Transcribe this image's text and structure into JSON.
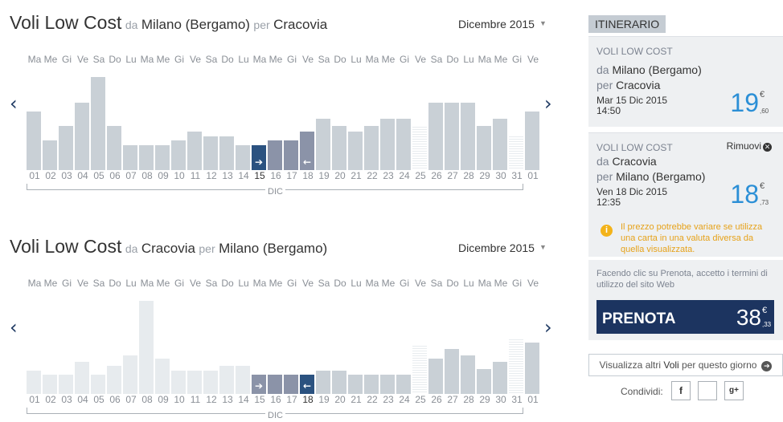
{
  "calendars": [
    {
      "title": {
        "brand": "Voli Low Cost",
        "from_prefix": "da",
        "from": "Milano (Bergamo)",
        "to_prefix": "per",
        "to": "Cracovia"
      },
      "month_select": "Dicembre 2015",
      "month_label": "DIC",
      "nav": {
        "prev": "‹",
        "next": "›"
      }
    },
    {
      "title": {
        "brand": "Voli Low Cost",
        "from_prefix": "da",
        "from": "Cracovia",
        "to_prefix": "per",
        "to": "Milano (Bergamo)"
      },
      "month_select": "Dicembre 2015",
      "month_label": "DIC",
      "nav": {
        "prev": "‹",
        "next": "›"
      }
    }
  ],
  "weekdays": [
    "Ma",
    "Me",
    "Gi",
    "Ve",
    "Sa",
    "Do",
    "Lu",
    "Ma",
    "Me",
    "Gi",
    "Ve",
    "Sa",
    "Do",
    "Lu",
    "Ma",
    "Me",
    "Gi",
    "Ve",
    "Sa",
    "Do",
    "Lu",
    "Ma",
    "Me",
    "Gi",
    "Ve",
    "Sa",
    "Do",
    "Lu",
    "Ma",
    "Me",
    "Gi",
    "Ve"
  ],
  "day_numbers": [
    "01",
    "02",
    "03",
    "04",
    "05",
    "06",
    "07",
    "08",
    "09",
    "10",
    "11",
    "12",
    "13",
    "14",
    "15",
    "16",
    "17",
    "18",
    "19",
    "20",
    "21",
    "22",
    "23",
    "24",
    "25",
    "26",
    "27",
    "28",
    "29",
    "30",
    "31",
    "01"
  ],
  "chart_data": [
    {
      "type": "bar",
      "categories": [
        "01",
        "02",
        "03",
        "04",
        "05",
        "06",
        "07",
        "08",
        "09",
        "10",
        "11",
        "12",
        "13",
        "14",
        "15",
        "16",
        "17",
        "18",
        "19",
        "20",
        "21",
        "22",
        "23",
        "24",
        "25",
        "26",
        "27",
        "28",
        "29",
        "30",
        "31",
        "01"
      ],
      "values": [
        0.61,
        0.31,
        0.46,
        0.7,
        0.97,
        0.46,
        0.26,
        0.26,
        0.26,
        0.31,
        0.4,
        0.35,
        0.35,
        0.26,
        0.26,
        0.31,
        0.31,
        0.4,
        0.53,
        0.46,
        0.4,
        0.46,
        0.53,
        0.53,
        0.45,
        0.7,
        0.7,
        0.7,
        0.46,
        0.53,
        0.35,
        0.61
      ],
      "states": [
        "normal",
        "normal",
        "normal",
        "normal",
        "normal",
        "normal",
        "normal",
        "normal",
        "normal",
        "normal",
        "normal",
        "normal",
        "normal",
        "normal",
        "selected",
        "range",
        "range",
        "range",
        "normal",
        "normal",
        "normal",
        "normal",
        "normal",
        "normal",
        "empty",
        "normal",
        "normal",
        "normal",
        "normal",
        "normal",
        "empty",
        "normal"
      ],
      "ylim": [
        0,
        1
      ]
    },
    {
      "type": "bar",
      "categories": [
        "01",
        "02",
        "03",
        "04",
        "05",
        "06",
        "07",
        "08",
        "09",
        "10",
        "11",
        "12",
        "13",
        "14",
        "15",
        "16",
        "17",
        "18",
        "19",
        "20",
        "21",
        "22",
        "23",
        "24",
        "25",
        "26",
        "27",
        "28",
        "29",
        "30",
        "31",
        "01"
      ],
      "values": [
        0.24,
        0.2,
        0.2,
        0.33,
        0.2,
        0.29,
        0.4,
        0.97,
        0.37,
        0.24,
        0.24,
        0.24,
        0.29,
        0.29,
        0.2,
        0.2,
        0.2,
        0.2,
        0.24,
        0.24,
        0.2,
        0.2,
        0.2,
        0.2,
        0.5,
        0.37,
        0.47,
        0.4,
        0.26,
        0.33,
        0.57,
        0.53
      ],
      "states": [
        "faded",
        "faded",
        "faded",
        "faded",
        "faded",
        "faded",
        "faded",
        "faded",
        "faded",
        "faded",
        "faded",
        "faded",
        "faded",
        "faded",
        "range",
        "range",
        "range",
        "selected",
        "normal",
        "normal",
        "normal",
        "normal",
        "normal",
        "normal",
        "empty",
        "normal",
        "normal",
        "normal",
        "normal",
        "normal",
        "empty",
        "normal"
      ],
      "ylim": [
        0,
        1
      ]
    }
  ],
  "itinerary": {
    "header": "ITINERARIO",
    "outbound": {
      "tag": "VOLI LOW COST",
      "from_prefix": "da",
      "from": "Milano (Bergamo)",
      "to_prefix": "per",
      "to": "Cracovia",
      "date": "Mar 15 Dic 2015",
      "time": "14:50",
      "price_int": "19",
      "price_cur": "€",
      "price_cents": ",60"
    },
    "return": {
      "tag": "VOLI LOW COST",
      "remove_label": "Rimuovi",
      "from_prefix": "da",
      "from": "Cracovia",
      "to_prefix": "per",
      "to": "Milano (Bergamo)",
      "date": "Ven 18 Dic 2015",
      "time": "12:35",
      "price_int": "18",
      "price_cur": "€",
      "price_cents": ",73",
      "warning": "Il prezzo potrebbe variare se utilizza una carta in una valuta diversa da quella visualizzata."
    },
    "terms": "Facendo clic su Prenota, accetto i termini di utilizzo del sito Web",
    "book": {
      "label": "PRENOTA",
      "price_int": "38",
      "price_cur": "€",
      "price_cents": ",33"
    },
    "more": {
      "pre": "Visualizza altri ",
      "bold": "Voli",
      "post": " per questo giorno"
    },
    "share_label": "Condividi:",
    "share": {
      "facebook": "f",
      "twitter": "",
      "google": "g+"
    }
  },
  "colors": {
    "bar_normal": "#c9d0d6",
    "bar_faded": "#e7ebee",
    "bar_selected": "#2b5280",
    "bar_range": "#8b93a8",
    "price": "#2b8fd6",
    "book_button": "#1c3460",
    "warning": "#f3b31a"
  }
}
